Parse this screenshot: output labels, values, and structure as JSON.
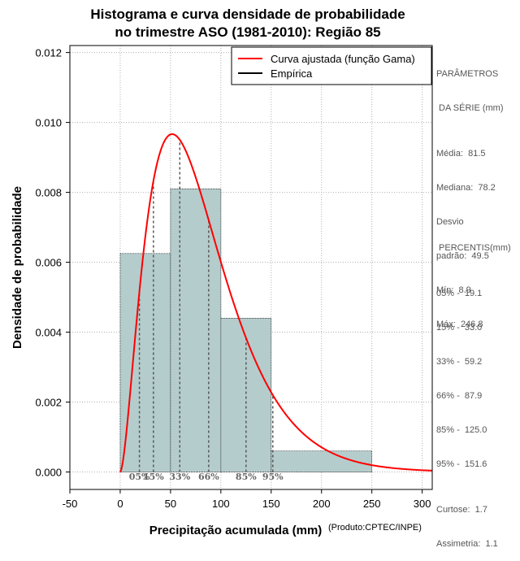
{
  "chart_data": {
    "type": "histogram",
    "title_line1": "Histograma e curva densidade de probabilidade",
    "title_line2": "no trimestre ASO (1981-2010): Região 85",
    "xlabel": "Precipitação acumulada (mm)",
    "ylabel": "Densidade de probabilidade",
    "credit": "(Produto:CPTEC/INPE)",
    "xlim": [
      -50,
      310
    ],
    "ylim": [
      -0.0005,
      0.0122
    ],
    "x_ticks": [
      -50,
      0,
      50,
      100,
      150,
      200,
      250,
      300
    ],
    "y_ticks": [
      0.0,
      0.002,
      0.004,
      0.006,
      0.008,
      0.01,
      0.012
    ],
    "y_tick_labels": [
      "0.000",
      "0.002",
      "0.004",
      "0.006",
      "0.008",
      "0.010",
      "0.012"
    ],
    "grid": true,
    "bins": [
      {
        "start": 0,
        "end": 50,
        "density": 0.00625
      },
      {
        "start": 50,
        "end": 100,
        "density": 0.0081
      },
      {
        "start": 100,
        "end": 150,
        "density": 0.0044
      },
      {
        "start": 150,
        "end": 250,
        "density": 0.0006
      }
    ],
    "bar_color": "#b5cccc",
    "curve": {
      "name": "Curva ajustada (função Gama)",
      "color": "#ff0000",
      "shape": 2.72,
      "scale": 30.0
    },
    "empirical": {
      "name": "Empírica",
      "color": "#000000"
    },
    "percentile_lines": [
      {
        "label": "05%",
        "x": 19.1
      },
      {
        "label": "15%",
        "x": 33.0
      },
      {
        "label": "33%",
        "x": 59.2
      },
      {
        "label": "66%",
        "x": 87.9
      },
      {
        "label": "85%",
        "x": 125.0
      },
      {
        "label": "95%",
        "x": 151.6
      }
    ],
    "legend_position": "top-right"
  },
  "params": {
    "heading1": "PARÂMETROS",
    "heading2": " DA SÉRIE (mm)",
    "mean": "Média:  81.5",
    "median": "Mediana:  78.2",
    "std1": "Desvio",
    "std2": "padrão:  49.5",
    "min": "Mín:  8.9",
    "max": "Máx:  246.8"
  },
  "percentis": {
    "heading": " PERCENTIS(mm)",
    "p05": "05% -  19.1",
    "p15": "15% -  33.0",
    "p33": "33% -  59.2",
    "p66": "66% -  87.9",
    "p85": "85% -  125.0",
    "p95": "95% -  151.6",
    "kurtosis": "Curtose:  1.7",
    "skewness": "Assimetria:  1.1"
  }
}
